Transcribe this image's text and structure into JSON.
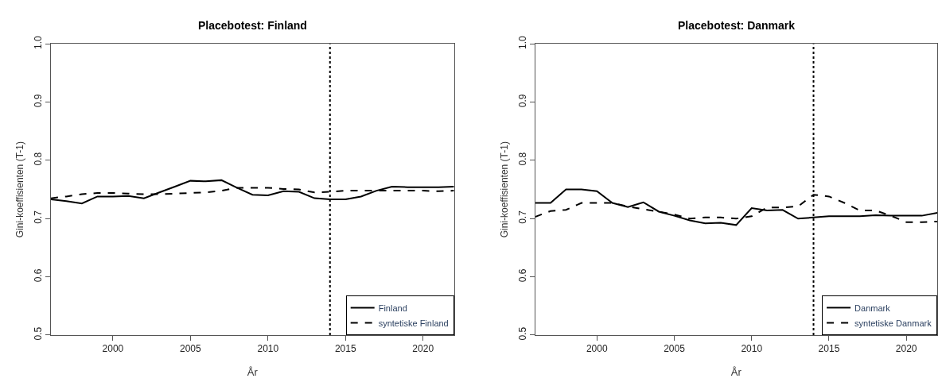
{
  "chart_data": [
    {
      "type": "line",
      "title": "Placebotest: Finland",
      "xlabel": "År",
      "ylabel": "Gini-koeffisienten (T-1)",
      "x": [
        1996,
        1997,
        1998,
        1999,
        2000,
        2001,
        2002,
        2003,
        2004,
        2005,
        2006,
        2007,
        2008,
        2009,
        2010,
        2011,
        2012,
        2013,
        2014,
        2015,
        2016,
        2017,
        2018,
        2019,
        2020,
        2021,
        2022
      ],
      "series": [
        {
          "name": "Finland",
          "color": "#000000",
          "line_style": "solid",
          "values": [
            0.733,
            0.73,
            0.726,
            0.738,
            0.738,
            0.739,
            0.735,
            0.745,
            0.755,
            0.765,
            0.764,
            0.766,
            0.753,
            0.741,
            0.74,
            0.747,
            0.746,
            0.735,
            0.733,
            0.733,
            0.738,
            0.748,
            0.755,
            0.754,
            0.754,
            0.754,
            0.755
          ]
        },
        {
          "name": "syntetiske Finland",
          "color": "#000000",
          "line_style": "dashed",
          "values": [
            0.735,
            0.738,
            0.742,
            0.744,
            0.744,
            0.743,
            0.742,
            0.742,
            0.743,
            0.744,
            0.745,
            0.748,
            0.753,
            0.753,
            0.753,
            0.751,
            0.75,
            0.745,
            0.746,
            0.748,
            0.748,
            0.748,
            0.748,
            0.748,
            0.748,
            0.747,
            0.748
          ]
        }
      ],
      "xlim": [
        1996,
        2022
      ],
      "xticks": [
        2000,
        2005,
        2010,
        2015,
        2020
      ],
      "ylim": [
        0.5,
        1.0
      ],
      "yticks": [
        0.5,
        0.6,
        0.7,
        0.8,
        0.9,
        {
          "value": 1.0,
          "label": "1.0"
        }
      ],
      "ref_lines": [
        {
          "axis": "x",
          "value": 2014,
          "color": "#000000",
          "line_style": "dotted"
        }
      ],
      "legend": "bottom right",
      "marker": "none"
    },
    {
      "type": "line",
      "title": "Placebotest: Danmark",
      "xlabel": "År",
      "ylabel": "Gini-koeffisienten (T-1)",
      "x": [
        1996,
        1997,
        1998,
        1999,
        2000,
        2001,
        2002,
        2003,
        2004,
        2005,
        2006,
        2007,
        2008,
        2009,
        2010,
        2011,
        2012,
        2013,
        2014,
        2015,
        2016,
        2017,
        2018,
        2019,
        2020,
        2021,
        2022
      ],
      "series": [
        {
          "name": "Danmark",
          "color": "#000000",
          "line_style": "solid",
          "values": [
            0.727,
            0.727,
            0.75,
            0.75,
            0.747,
            0.727,
            0.72,
            0.728,
            0.712,
            0.705,
            0.697,
            0.692,
            0.693,
            0.689,
            0.718,
            0.714,
            0.715,
            0.7,
            0.702,
            0.704,
            0.704,
            0.704,
            0.706,
            0.705,
            0.705,
            0.705,
            0.71
          ]
        },
        {
          "name": "syntetiske Danmark",
          "color": "#000000",
          "line_style": "dashed",
          "values": [
            0.703,
            0.713,
            0.715,
            0.727,
            0.727,
            0.727,
            0.721,
            0.716,
            0.712,
            0.707,
            0.7,
            0.702,
            0.702,
            0.7,
            0.704,
            0.719,
            0.719,
            0.721,
            0.741,
            0.738,
            0.727,
            0.714,
            0.714,
            0.705,
            0.694,
            0.694,
            0.695
          ]
        }
      ],
      "xlim": [
        1996,
        2022
      ],
      "xticks": [
        2000,
        2005,
        2010,
        2015,
        2020
      ],
      "ylim": [
        0.5,
        1.0
      ],
      "yticks": [
        0.5,
        0.6,
        0.7,
        0.8,
        0.9,
        {
          "value": 1.0,
          "label": "1.0"
        }
      ],
      "ref_lines": [
        {
          "axis": "x",
          "value": 2014,
          "color": "#000000",
          "line_style": "dotted"
        }
      ],
      "legend": "bottom right",
      "marker": "none"
    }
  ]
}
